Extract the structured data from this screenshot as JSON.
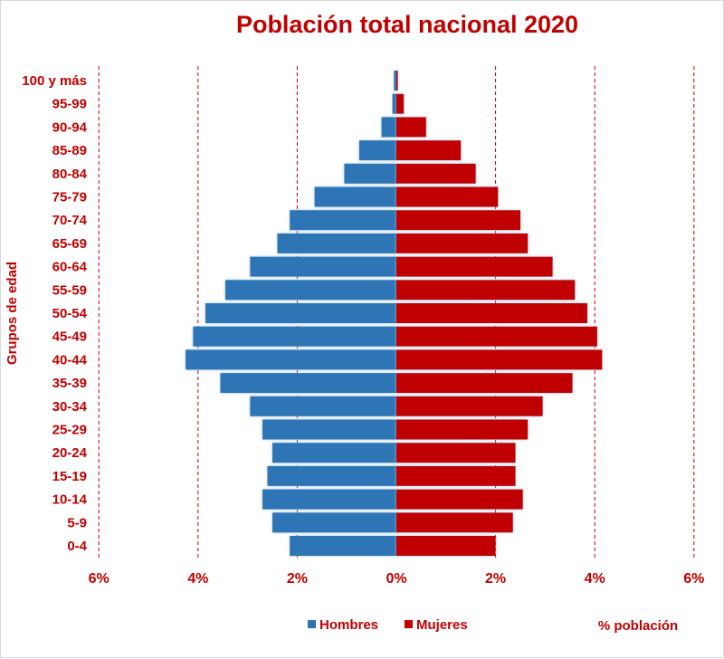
{
  "chart_data": {
    "type": "bar",
    "orientation": "horizontal",
    "layout": "population-pyramid",
    "title": "Población total nacional 2020",
    "ylabel": "Grupos de edad",
    "unit_label": "% población",
    "categories": [
      "0-4",
      "5-9",
      "10-14",
      "15-19",
      "20-24",
      "25-29",
      "30-34",
      "35-39",
      "40-44",
      "45-49",
      "50-54",
      "55-59",
      "60-64",
      "65-69",
      "70-74",
      "75-79",
      "80-84",
      "85-89",
      "90-94",
      "95-99",
      "100 y más"
    ],
    "series": [
      {
        "name": "Hombres",
        "color": "#2e75b6",
        "values": [
          2.15,
          2.5,
          2.7,
          2.6,
          2.5,
          2.7,
          2.95,
          3.55,
          4.25,
          4.1,
          3.85,
          3.45,
          2.95,
          2.4,
          2.15,
          1.65,
          1.05,
          0.75,
          0.3,
          0.08,
          0.05
        ]
      },
      {
        "name": "Mujeres",
        "color": "#c00000",
        "values": [
          2.0,
          2.35,
          2.55,
          2.4,
          2.4,
          2.65,
          2.95,
          3.55,
          4.15,
          4.05,
          3.85,
          3.6,
          3.15,
          2.65,
          2.5,
          2.05,
          1.6,
          1.3,
          0.6,
          0.15,
          0.03
        ]
      }
    ],
    "x_ticks": [
      {
        "value": -6,
        "label": "6%"
      },
      {
        "value": -4,
        "label": "4%"
      },
      {
        "value": -2,
        "label": "2%"
      },
      {
        "value": 0,
        "label": "0%"
      },
      {
        "value": 2,
        "label": "2%"
      },
      {
        "value": 4,
        "label": "4%"
      },
      {
        "value": 6,
        "label": "6%"
      }
    ],
    "xlim": [
      -6,
      6
    ],
    "grid": "vertical dashed",
    "legend_position": "bottom"
  }
}
